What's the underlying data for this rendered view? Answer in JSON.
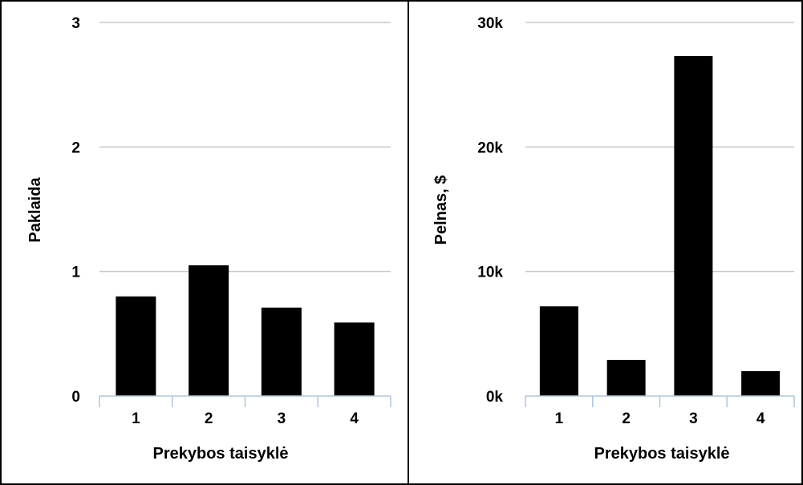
{
  "chart_data": [
    {
      "type": "bar",
      "categories": [
        "1",
        "2",
        "3",
        "4"
      ],
      "values": [
        0.8,
        1.05,
        0.71,
        0.59
      ],
      "xlabel": "Prekybos taisyklė",
      "ylabel": "Paklaida",
      "ylim": [
        0,
        3
      ],
      "yticks": [
        {
          "value": 0,
          "label": "0"
        },
        {
          "value": 1,
          "label": "1"
        },
        {
          "value": 2,
          "label": "2"
        },
        {
          "value": 3,
          "label": "3"
        }
      ],
      "grid": true,
      "bar_color": "#000000",
      "grid_color": "#c8c8c8",
      "axis_color": "#aec6e4"
    },
    {
      "type": "bar",
      "categories": [
        "1",
        "2",
        "3",
        "4"
      ],
      "values": [
        7200,
        2900,
        27300,
        2000
      ],
      "xlabel": "Prekybos taisyklė",
      "ylabel": "Pelnas, $",
      "ylim": [
        0,
        30000
      ],
      "yticks": [
        {
          "value": 0,
          "label": "0k"
        },
        {
          "value": 10000,
          "label": "10k"
        },
        {
          "value": 20000,
          "label": "20k"
        },
        {
          "value": 30000,
          "label": "30k"
        }
      ],
      "grid": true,
      "bar_color": "#000000",
      "grid_color": "#c8c8c8",
      "axis_color": "#aec6e4"
    }
  ]
}
